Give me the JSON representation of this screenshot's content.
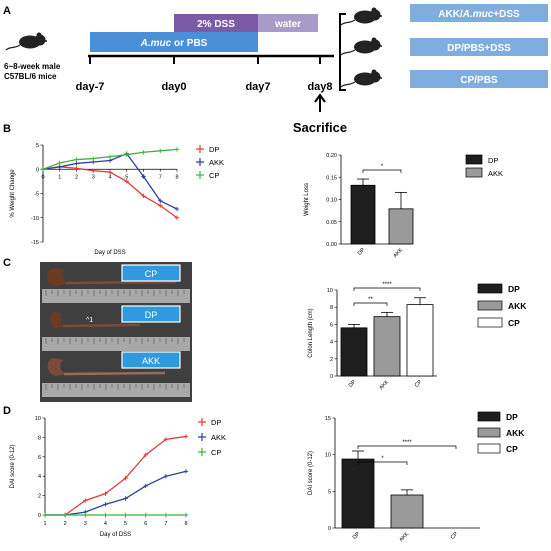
{
  "panel_labels": {
    "a": "A",
    "b": "B",
    "c": "C",
    "d": "D"
  },
  "colors": {
    "dp": "#e63b3b",
    "akk": "#2b3f9e",
    "cp": "#3cb43c",
    "dss": "#7b5aa6",
    "water": "#a99bc8",
    "amuc": "#4a90d9",
    "box": "#7faede"
  },
  "timeline": {
    "dss_label": "2% DSS",
    "water_label": "water",
    "treat_prefix": "A.muc",
    "treat_suffix": " or PBS",
    "mice_line1": "6~8-week male",
    "mice_line2": "C57BL/6 mice",
    "days": [
      "day-7",
      "day0",
      "day7",
      "day8"
    ],
    "sacrifice": "Sacrifice",
    "groups": [
      {
        "prefix": "AKK/",
        "italic": "A.muc",
        "suffix": "+DSS"
      },
      {
        "prefix": "DP/PBS+DSS",
        "italic": "",
        "suffix": ""
      },
      {
        "prefix": "CP/PBS",
        "italic": "",
        "suffix": ""
      }
    ]
  },
  "photo_labels": [
    "CP",
    "DP",
    "AKK"
  ],
  "chart_data": [
    {
      "type": "line",
      "id": "B-left",
      "x": [
        0,
        1,
        2,
        3,
        4,
        5,
        6,
        7,
        8
      ],
      "series": [
        {
          "name": "DP",
          "values": [
            0,
            0.5,
            0.2,
            -0.3,
            -0.6,
            -2.5,
            -5.5,
            -7.5,
            -10
          ]
        },
        {
          "name": "AKK",
          "values": [
            0,
            0.5,
            1.2,
            1.5,
            1.8,
            3.2,
            -1.5,
            -6.5,
            -8.2
          ]
        },
        {
          "name": "CP",
          "values": [
            0,
            1.3,
            2.0,
            2.2,
            2.6,
            3.0,
            3.5,
            3.8,
            4.1
          ]
        }
      ],
      "xlabel": "Day of DSS",
      "ylabel": "% Weight Change",
      "xticks": [
        "0",
        "1",
        "2",
        "3",
        "4",
        "5",
        "6",
        "7",
        "8"
      ],
      "yticks": [
        "5",
        "0",
        "-5",
        "-10",
        "-15"
      ],
      "ylim": [
        -15,
        5
      ]
    },
    {
      "type": "bar",
      "id": "B-right",
      "categories": [
        "DP",
        "AKK"
      ],
      "values": [
        0.132,
        0.079
      ],
      "errors": [
        0.014,
        0.037
      ],
      "ylabel": "Weight Loss",
      "yticks": [
        "0.20",
        "0.15",
        "0.10",
        "0.05",
        "0.00"
      ],
      "ylim": [
        0,
        0.2
      ],
      "significance": [
        {
          "pair": [
            "DP",
            "AKK"
          ],
          "label": "*"
        }
      ],
      "legend": [
        "DP",
        "AKK"
      ]
    },
    {
      "type": "bar",
      "id": "C-right",
      "categories": [
        "DP",
        "AKK",
        "CP"
      ],
      "values": [
        5.6,
        6.9,
        8.3
      ],
      "errors": [
        0.4,
        0.5,
        0.8
      ],
      "ylabel": "Colon Length (cm)",
      "yticks": [
        "10",
        "8",
        "6",
        "4",
        "2",
        "0"
      ],
      "ylim": [
        0,
        10
      ],
      "significance": [
        {
          "pair": [
            "DP",
            "AKK"
          ],
          "label": "**"
        },
        {
          "pair": [
            "DP",
            "CP"
          ],
          "label": "****"
        }
      ],
      "legend": [
        "DP",
        "AKK",
        "CP"
      ]
    },
    {
      "type": "line",
      "id": "D-left",
      "x": [
        1,
        2,
        3,
        4,
        5,
        6,
        7,
        8
      ],
      "series": [
        {
          "name": "DP",
          "values": [
            0,
            0,
            1.5,
            2.2,
            3.8,
            6.2,
            7.8,
            8.1
          ]
        },
        {
          "name": "AKK",
          "values": [
            0,
            0,
            0.3,
            1.1,
            1.7,
            3.0,
            4.0,
            4.5
          ]
        },
        {
          "name": "CP",
          "values": [
            0,
            0,
            0,
            0,
            0,
            0,
            0,
            0
          ]
        }
      ],
      "xlabel": "Day of DSS",
      "ylabel": "DAI score (0-12)",
      "xticks": [
        "1",
        "2",
        "3",
        "4",
        "5",
        "6",
        "7",
        "8"
      ],
      "yticks": [
        "10",
        "8",
        "6",
        "4",
        "2",
        "0"
      ],
      "ylim": [
        0,
        10
      ]
    },
    {
      "type": "bar",
      "id": "D-right",
      "categories": [
        "DP",
        "AKK",
        "CP"
      ],
      "values": [
        9.4,
        4.5,
        0
      ],
      "errors": [
        1.1,
        0.7,
        0
      ],
      "ylabel": "DAI score (0-12)",
      "yticks": [
        "15",
        "10",
        "5",
        "0"
      ],
      "ylim": [
        0,
        15
      ],
      "significance": [
        {
          "pair": [
            "DP",
            "AKK"
          ],
          "label": "*"
        },
        {
          "pair": [
            "DP",
            "CP"
          ],
          "label": "****"
        }
      ],
      "legend": [
        "DP",
        "AKK",
        "CP"
      ]
    }
  ]
}
